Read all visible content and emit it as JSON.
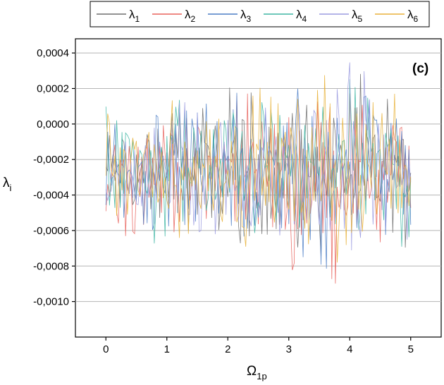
{
  "chart_data": {
    "type": "line",
    "panel_label": "(c)",
    "xlabel": {
      "base": "Ω",
      "sub": "1p"
    },
    "ylabel": {
      "base": "λ",
      "sub": "i"
    },
    "xlim": [
      -0.5,
      5.5
    ],
    "ylim": [
      -0.0012,
      0.00048
    ],
    "x_ticks": [
      0,
      1,
      2,
      3,
      4,
      5
    ],
    "y_ticks": [
      -0.001,
      -0.0008,
      -0.0006,
      -0.0004,
      -0.0002,
      0.0,
      0.0002,
      0.0004
    ],
    "y_tick_labels": [
      "-0,0010",
      "-0,0008",
      "-0,0006",
      "-0,0004",
      "-0,0002",
      "0,0000",
      "0,0002",
      "0,0004"
    ],
    "grid": "horizontal",
    "legend_position": "top",
    "x_range_of_data": [
      0,
      5
    ],
    "noise_envelope": {
      "x": [
        0,
        0.5,
        1.0,
        1.5,
        2.0,
        2.5,
        3.0,
        3.5,
        4.0,
        4.5,
        5.0
      ],
      "upper": [
        0.0001,
        0.0001,
        0.00012,
        0.00016,
        0.0002,
        0.00024,
        0.00034,
        0.00036,
        0.00036,
        0.00022,
        0.0001
      ],
      "lower": [
        -0.0007,
        -0.0007,
        -0.00072,
        -0.00076,
        -0.00076,
        -0.00084,
        -0.0009,
        -0.00094,
        -0.00094,
        -0.0008,
        -0.00072
      ]
    },
    "series": [
      {
        "name": "λ",
        "sub": "1",
        "color": "#6e6e6e",
        "mean": -0.00027
      },
      {
        "name": "λ",
        "sub": "2",
        "color": "#e8625c",
        "mean": -0.00027
      },
      {
        "name": "λ",
        "sub": "3",
        "color": "#4c7ec6",
        "mean": -0.00027
      },
      {
        "name": "λ",
        "sub": "4",
        "color": "#3fb6a4",
        "mean": -0.00027
      },
      {
        "name": "λ",
        "sub": "5",
        "color": "#9b9be0",
        "mean": -0.00027
      },
      {
        "name": "λ",
        "sub": "6",
        "color": "#e8b13a",
        "mean": -0.00027
      }
    ]
  }
}
